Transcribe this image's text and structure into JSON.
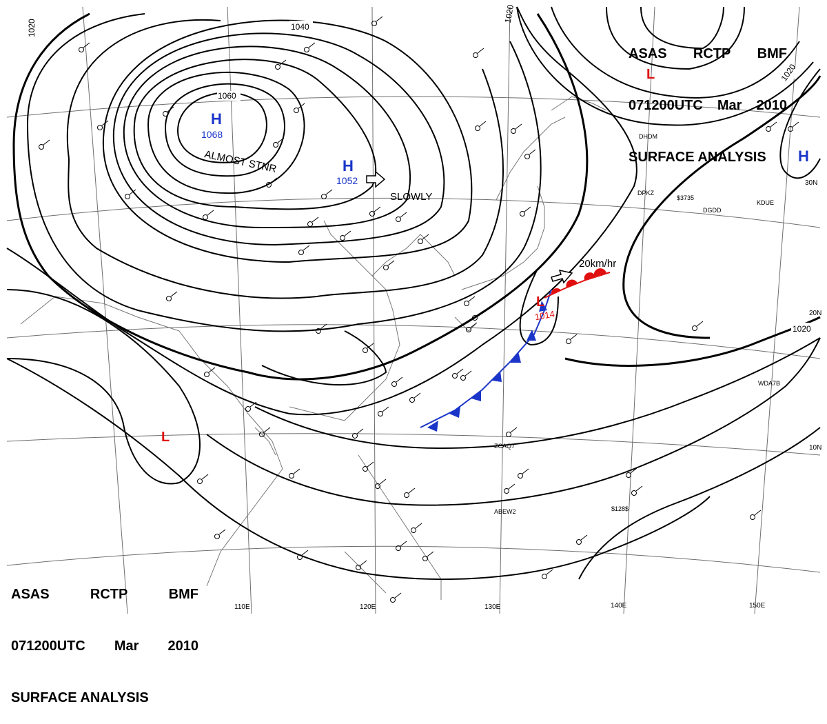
{
  "title": {
    "agency": [
      "ASAS",
      "RCTP",
      "BMF"
    ],
    "datetime": [
      "071200UTC",
      "Mar",
      "2010"
    ],
    "product": "SURFACE ANALYSIS"
  },
  "pressure_centers": [
    {
      "type": "H",
      "value": "1068",
      "color": "#1a35c8",
      "note": "ALMOST STNR"
    },
    {
      "type": "H",
      "value": "1052",
      "color": "#1a35c8",
      "note": "SLOWLY"
    },
    {
      "type": "H",
      "value": "",
      "color": "#1a35c8",
      "note": ""
    },
    {
      "type": "L",
      "value": "1014",
      "color": "#e01010",
      "note": "20km/hr"
    },
    {
      "type": "L",
      "value": "",
      "color": "#e01010",
      "note": ""
    },
    {
      "type": "L",
      "value": "",
      "color": "#e01010",
      "note": ""
    }
  ],
  "isobar_labels": [
    "1020",
    "1020",
    "1020",
    "1020",
    "1040",
    "1060"
  ],
  "longitude_labels": [
    "110E",
    "120E",
    "130E",
    "140E",
    "150E"
  ],
  "latitude_labels": [
    "30N",
    "20N",
    "10N"
  ],
  "station_codes": [
    "DPKZ",
    "$3735",
    "DGDD",
    "KDUE",
    "ZCAQ7",
    "ABEW2",
    "$128$",
    "WDA7B",
    "DHDM"
  ],
  "colors": {
    "warm_front": "#e01010",
    "cold_front": "#1a35c8",
    "isobar": "#000000",
    "grid": "#555555",
    "coast": "#666666"
  }
}
